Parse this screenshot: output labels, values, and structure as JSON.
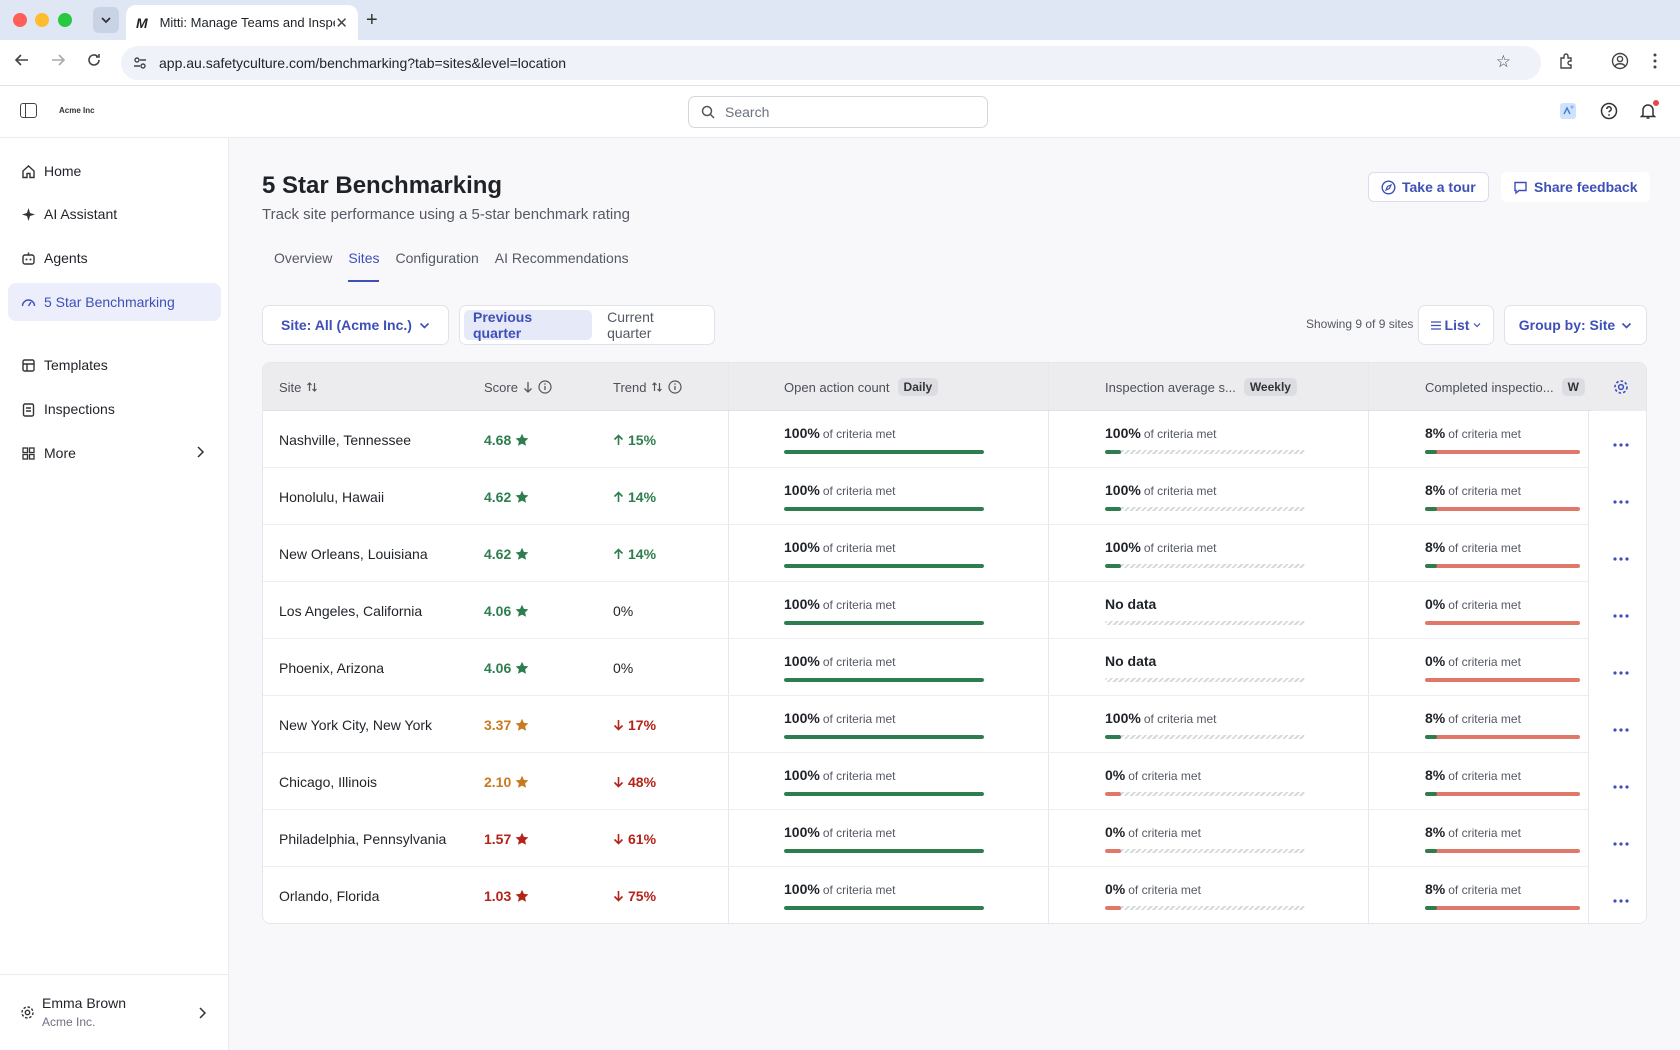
{
  "browser": {
    "tab_favicon": "M",
    "tab_title": "Mitti: Manage Teams and Inspections",
    "url": "app.au.safetyculture.com/benchmarking?tab=sites&level=location"
  },
  "header": {
    "logo": "Acme Inc",
    "search_placeholder": "Search"
  },
  "sidebar": {
    "items": [
      {
        "label": "Home",
        "icon": "home-icon"
      },
      {
        "label": "AI Assistant",
        "icon": "sparkle-icon"
      },
      {
        "label": "Agents",
        "icon": "robot-icon"
      },
      {
        "label": "5 Star Benchmarking",
        "icon": "gauge-icon"
      },
      {
        "label": "Templates",
        "icon": "template-icon"
      },
      {
        "label": "Inspections",
        "icon": "clipboard-icon"
      },
      {
        "label": "More",
        "icon": "grid-icon"
      }
    ],
    "user": {
      "name": "Emma Brown",
      "org": "Acme Inc."
    }
  },
  "page": {
    "title": "5 Star Benchmarking",
    "subtitle": "Track site performance using a 5-star benchmark rating",
    "take_tour": "Take a tour",
    "share_feedback": "Share feedback",
    "tabs": [
      "Overview",
      "Sites",
      "Configuration",
      "AI Recommendations"
    ],
    "active_tab": "Sites"
  },
  "filters": {
    "site": "Site: All (Acme Inc.)",
    "period_options": [
      "Previous quarter",
      "Current quarter"
    ],
    "active_period": "Previous quarter",
    "showing": "Showing 9 of 9 sites",
    "view": "List",
    "group_by": "Group by: Site"
  },
  "table": {
    "headers": {
      "site": "Site",
      "score": "Score",
      "trend": "Trend",
      "open_action": "Open action count",
      "open_action_pill": "Daily",
      "inspection_avg": "Inspection average s...",
      "inspection_avg_pill": "Weekly",
      "completed": "Completed inspectio...",
      "completed_pill": "W"
    },
    "criteria_suffix": "of criteria met",
    "rows": [
      {
        "site": "Nashville, Tennessee",
        "score": "4.68",
        "trend": "15%",
        "dir": "up",
        "c1": "100%",
        "c1v": 1.0,
        "c2": "100%",
        "c2v": 0.08,
        "c3": "8%",
        "c3v": 0.08
      },
      {
        "site": "Honolulu, Hawaii",
        "score": "4.62",
        "trend": "14%",
        "dir": "up",
        "c1": "100%",
        "c1v": 1.0,
        "c2": "100%",
        "c2v": 0.08,
        "c3": "8%",
        "c3v": 0.08
      },
      {
        "site": "New Orleans, Louisiana",
        "score": "4.62",
        "trend": "14%",
        "dir": "up",
        "c1": "100%",
        "c1v": 1.0,
        "c2": "100%",
        "c2v": 0.08,
        "c3": "8%",
        "c3v": 0.08
      },
      {
        "site": "Los Angeles, California",
        "score": "4.06",
        "trend": "0%",
        "dir": "flat",
        "c1": "100%",
        "c1v": 1.0,
        "c2": "No data",
        "c2v": 0,
        "c3": "0%",
        "c3v": 0
      },
      {
        "site": "Phoenix, Arizona",
        "score": "4.06",
        "trend": "0%",
        "dir": "flat",
        "c1": "100%",
        "c1v": 1.0,
        "c2": "No data",
        "c2v": 0,
        "c3": "0%",
        "c3v": 0
      },
      {
        "site": "New York City, New York",
        "score": "3.37",
        "trend": "17%",
        "dir": "down",
        "c1": "100%",
        "c1v": 1.0,
        "c2": "100%",
        "c2v": 0.08,
        "c3": "8%",
        "c3v": 0.08
      },
      {
        "site": "Chicago, Illinois",
        "score": "2.10",
        "trend": "48%",
        "dir": "down",
        "c1": "100%",
        "c1v": 1.0,
        "c2": "0%",
        "c2v": 0.08,
        "c3": "8%",
        "c3v": 0.08
      },
      {
        "site": "Philadelphia, Pennsylvania",
        "score": "1.57",
        "trend": "61%",
        "dir": "down",
        "c1": "100%",
        "c1v": 1.0,
        "c2": "0%",
        "c2v": 0.08,
        "c3": "8%",
        "c3v": 0.08
      },
      {
        "site": "Orlando, Florida",
        "score": "1.03",
        "trend": "75%",
        "dir": "down",
        "c1": "100%",
        "c1v": 1.0,
        "c2": "0%",
        "c2v": 0.08,
        "c3": "8%",
        "c3v": 0.08
      }
    ]
  },
  "colors": {
    "accent": "#3e4fb8",
    "good": "#2e7d4f",
    "mid": "#c77a1e",
    "bad": "#b42318",
    "bar_green": "#2e7d4f",
    "bar_red": "#e0786a"
  }
}
